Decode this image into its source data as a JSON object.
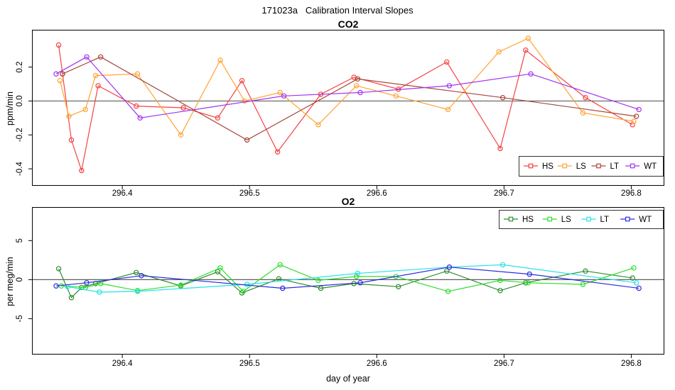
{
  "title": "171023a   Calibration Interval Slopes",
  "x_axis_label": "day of year",
  "chart_data": [
    {
      "type": "line",
      "title": "CO2",
      "xlabel": "",
      "ylabel": "ppm/min",
      "xlim": [
        296.329,
        296.826
      ],
      "ylim": [
        -0.5,
        0.42
      ],
      "grid": false,
      "zero_line": true,
      "legend_position": "bottom-right",
      "xticks": {
        "values": [
          296.4,
          296.5,
          296.6,
          296.7,
          296.8
        ],
        "labels": [
          "296.4",
          "296.5",
          "296.6",
          "296.7",
          "296.8"
        ]
      },
      "yticks": {
        "values": [
          0.2,
          0.0,
          -0.2,
          -0.4
        ],
        "labels": [
          "0.2",
          "0.0",
          "-0.2",
          "-0.4"
        ]
      },
      "series": [
        {
          "name": "HS",
          "color": "#f54242",
          "points": [
            [
              296.35,
              0.33
            ],
            [
              296.353,
              0.16
            ],
            [
              296.36,
              -0.23
            ],
            [
              296.368,
              -0.41
            ],
            [
              296.381,
              0.09
            ],
            [
              296.411,
              -0.03
            ],
            [
              296.448,
              -0.04
            ],
            [
              296.475,
              -0.1
            ],
            [
              296.494,
              0.12
            ],
            [
              296.522,
              -0.3
            ],
            [
              296.556,
              0.04
            ],
            [
              296.582,
              0.14
            ],
            [
              296.617,
              0.07
            ],
            [
              296.655,
              0.23
            ],
            [
              296.697,
              -0.28
            ],
            [
              296.717,
              0.3
            ],
            [
              296.764,
              0.02
            ],
            [
              296.801,
              -0.14
            ]
          ]
        },
        {
          "name": "LS",
          "color": "#ffa333",
          "points": [
            [
              296.351,
              0.12
            ],
            [
              296.358,
              -0.09
            ],
            [
              296.371,
              -0.05
            ],
            [
              296.379,
              0.15
            ],
            [
              296.412,
              0.16
            ],
            [
              296.446,
              -0.2
            ],
            [
              296.477,
              0.24
            ],
            [
              296.496,
              0.0
            ],
            [
              296.524,
              0.05
            ],
            [
              296.554,
              -0.14
            ],
            [
              296.584,
              0.09
            ],
            [
              296.615,
              0.03
            ],
            [
              296.656,
              -0.05
            ],
            [
              296.696,
              0.29
            ],
            [
              296.719,
              0.37
            ],
            [
              296.762,
              -0.07
            ],
            [
              296.802,
              -0.12
            ]
          ]
        },
        {
          "name": "LT",
          "color": "#a8463c",
          "points": [
            [
              296.353,
              0.16
            ],
            [
              296.383,
              0.26
            ],
            [
              296.498,
              -0.23
            ],
            [
              296.585,
              0.13
            ],
            [
              296.699,
              0.02
            ],
            [
              296.804,
              -0.09
            ]
          ]
        },
        {
          "name": "WT",
          "color": "#a034f0",
          "points": [
            [
              296.348,
              0.16
            ],
            [
              296.372,
              0.26
            ],
            [
              296.414,
              -0.1
            ],
            [
              296.527,
              0.03
            ],
            [
              296.587,
              0.05
            ],
            [
              296.657,
              0.09
            ],
            [
              296.721,
              0.16
            ],
            [
              296.806,
              -0.05
            ]
          ]
        }
      ]
    },
    {
      "type": "line",
      "title": "O2",
      "xlabel": "day of year",
      "ylabel": "per meg/min",
      "xlim": [
        296.329,
        296.826
      ],
      "ylim": [
        -9.6,
        9.3
      ],
      "grid": false,
      "zero_line": true,
      "legend_position": "top-right",
      "xticks": {
        "values": [
          296.4,
          296.5,
          296.6,
          296.7,
          296.8
        ],
        "labels": [
          "296.4",
          "296.5",
          "296.6",
          "296.7",
          "296.8"
        ]
      },
      "yticks": {
        "values": [
          5,
          0,
          -5
        ],
        "labels": [
          "5",
          "0",
          "-5"
        ]
      },
      "series": [
        {
          "name": "HS",
          "color": "#2f8b2f",
          "points": [
            [
              296.35,
              1.4
            ],
            [
              296.36,
              -2.3
            ],
            [
              296.368,
              -1.0
            ],
            [
              296.379,
              -0.5
            ],
            [
              296.411,
              0.9
            ],
            [
              296.446,
              -0.8
            ],
            [
              296.475,
              1.0
            ],
            [
              296.494,
              -1.7
            ],
            [
              296.523,
              0.1
            ],
            [
              296.556,
              -1.1
            ],
            [
              296.582,
              -0.5
            ],
            [
              296.617,
              -0.9
            ],
            [
              296.655,
              1.1
            ],
            [
              296.697,
              -1.4
            ],
            [
              296.717,
              -0.4
            ],
            [
              296.764,
              1.1
            ],
            [
              296.801,
              0.2
            ]
          ]
        },
        {
          "name": "LS",
          "color": "#2ede2e",
          "points": [
            [
              296.352,
              -0.8
            ],
            [
              296.371,
              -1.0
            ],
            [
              296.383,
              -0.5
            ],
            [
              296.412,
              -1.4
            ],
            [
              296.446,
              -0.7
            ],
            [
              296.477,
              1.5
            ],
            [
              296.495,
              -1.5
            ],
            [
              296.524,
              1.9
            ],
            [
              296.554,
              -0.1
            ],
            [
              296.584,
              0.4
            ],
            [
              296.615,
              0.4
            ],
            [
              296.656,
              -1.5
            ],
            [
              296.697,
              -0.1
            ],
            [
              296.719,
              -0.4
            ],
            [
              296.762,
              -0.6
            ],
            [
              296.802,
              1.5
            ]
          ]
        },
        {
          "name": "LT",
          "color": "#26e2ea",
          "points": [
            [
              296.357,
              -0.9
            ],
            [
              296.382,
              -1.6
            ],
            [
              296.412,
              -1.5
            ],
            [
              296.498,
              -0.6
            ],
            [
              296.585,
              0.8
            ],
            [
              296.657,
              1.6
            ],
            [
              296.699,
              1.9
            ],
            [
              296.804,
              -0.4
            ]
          ]
        },
        {
          "name": "WT",
          "color": "#2b2be0",
          "points": [
            [
              296.348,
              -0.8
            ],
            [
              296.372,
              -0.4
            ],
            [
              296.415,
              0.5
            ],
            [
              296.526,
              -1.1
            ],
            [
              296.587,
              -0.4
            ],
            [
              296.657,
              1.6
            ],
            [
              296.72,
              0.7
            ],
            [
              296.806,
              -1.1
            ]
          ]
        }
      ]
    }
  ]
}
